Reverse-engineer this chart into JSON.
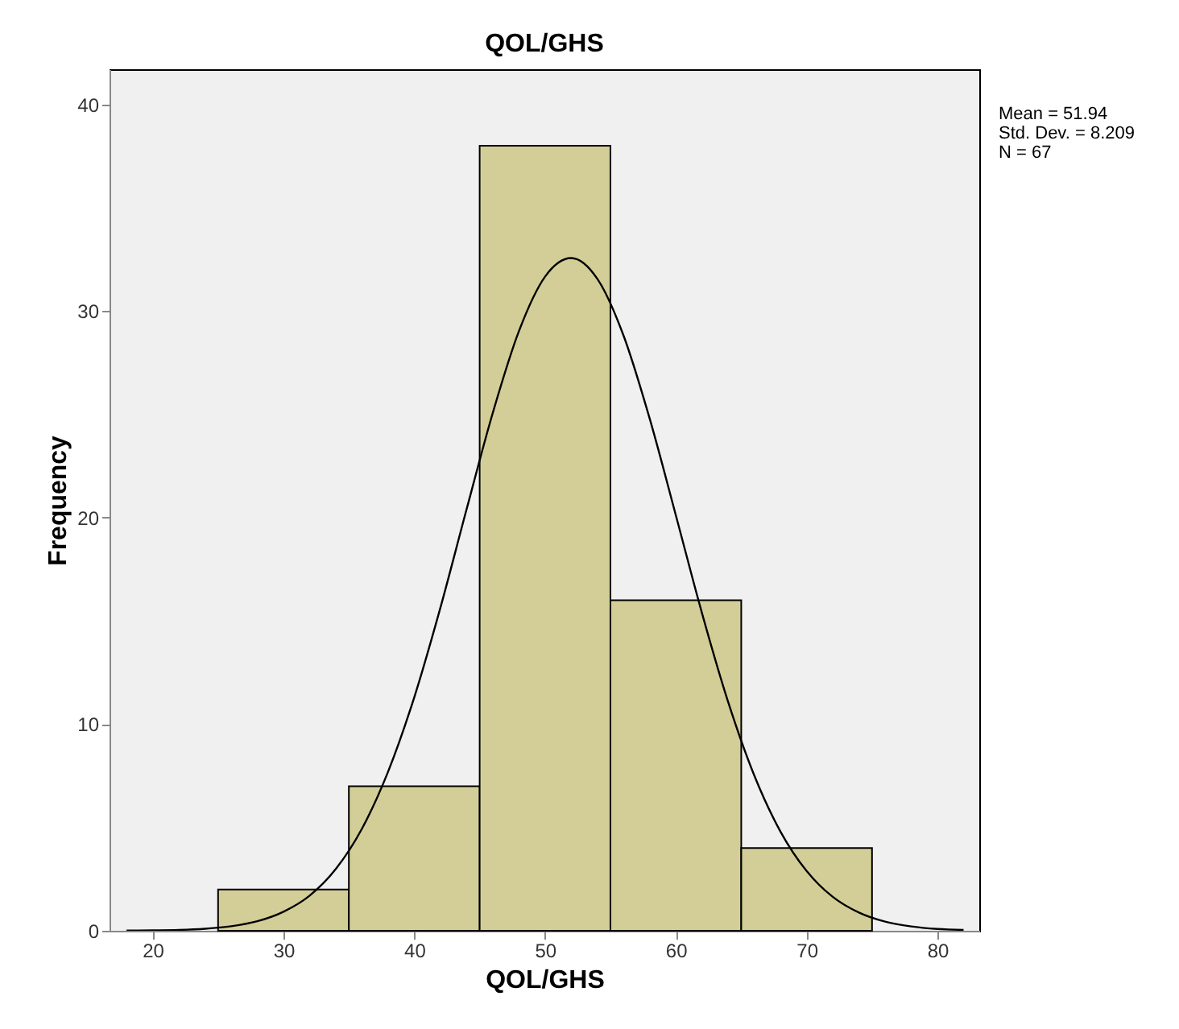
{
  "chart_data": {
    "type": "histogram",
    "title": "QOL/GHS",
    "xlabel": "QOL/GHS",
    "ylabel": "Frequency",
    "bins": [
      25,
      35,
      45,
      55,
      65,
      75
    ],
    "values": [
      2,
      7,
      38,
      16,
      4
    ],
    "color": "#d3ce97",
    "series": [
      {
        "type": "line",
        "color": "#000000",
        "x": [
          18,
          20,
          22,
          24,
          26,
          28,
          30,
          32,
          34,
          36,
          38,
          40,
          42,
          44,
          46,
          48,
          50,
          52,
          54,
          56,
          58,
          60,
          62,
          64,
          66,
          68,
          70,
          72,
          74,
          76,
          78,
          80,
          82
        ],
        "values": [
          0.01,
          0.02,
          0.04,
          0.1,
          0.22,
          0.46,
          0.92,
          1.7,
          2.99,
          4.94,
          7.7,
          11.3,
          15.64,
          20.4,
          25.06,
          29.02,
          31.66,
          32.56,
          31.55,
          28.81,
          24.79,
          20.11,
          15.37,
          11.07,
          7.51,
          4.8,
          2.89,
          1.64,
          0.88,
          0.44,
          0.21,
          0.09,
          0.04
        ]
      }
    ],
    "xlim": [
      16.7,
      83.2
    ],
    "ylim": [
      0,
      41.7
    ],
    "xticks": [
      20,
      30,
      40,
      50,
      60,
      70,
      80
    ],
    "yticks": [
      0,
      10,
      20,
      30,
      40
    ],
    "grid": false,
    "annotations": [
      "Mean = 51.94",
      "Std. Dev. = 8.209",
      "N = 67"
    ]
  }
}
